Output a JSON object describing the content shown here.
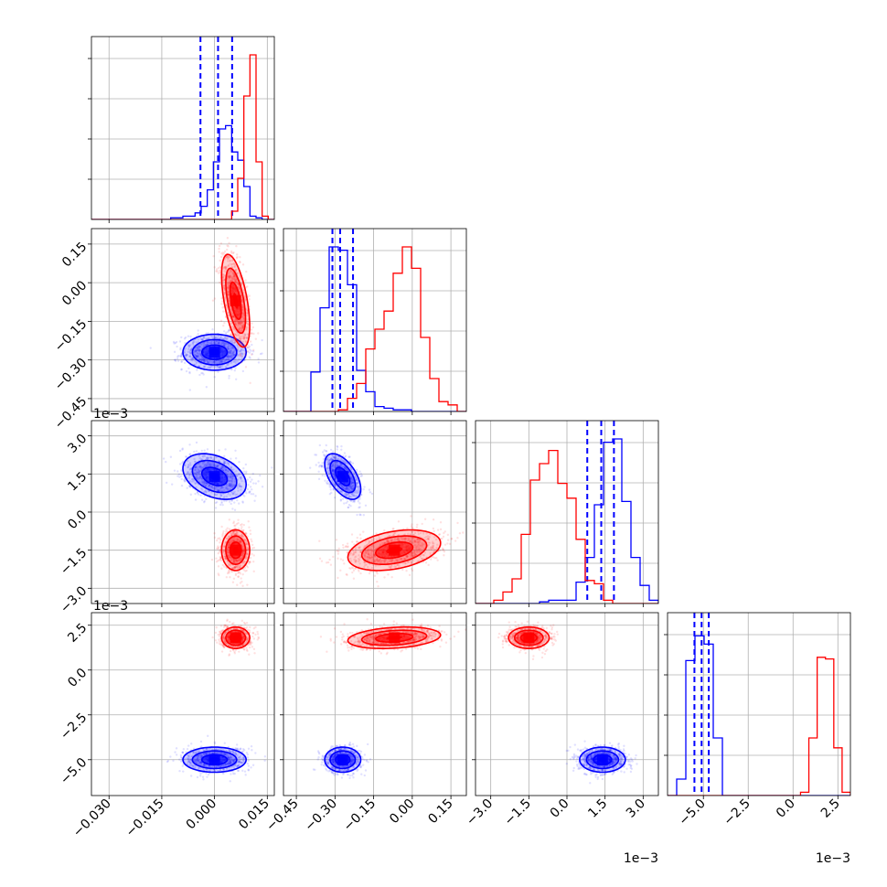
{
  "chart_data": {
    "type": "corner",
    "grid": true,
    "params": [
      {
        "range": [
          -0.035,
          0.017
        ],
        "ticks": [
          -0.03,
          -0.015,
          0.0,
          0.015
        ],
        "tick_labels": [
          "−0.030",
          "−0.015",
          "0.000",
          "0.015"
        ],
        "exponent_label": ""
      },
      {
        "range": [
          -0.5,
          0.21
        ],
        "ticks": [
          -0.45,
          -0.3,
          -0.15,
          0.0,
          0.15
        ],
        "tick_labels": [
          "−0.45",
          "−0.30",
          "−0.15",
          "0.00",
          "0.15"
        ],
        "exponent_label": ""
      },
      {
        "range": [
          -3.6,
          3.6
        ],
        "ticks": [
          -3.0,
          -1.5,
          0.0,
          1.5,
          3.0
        ],
        "tick_labels": [
          "−3.0",
          "−1.5",
          "0.0",
          "1.5",
          "3.0"
        ],
        "exponent_label": "1e−3"
      },
      {
        "range": [
          -7.0,
          3.2
        ],
        "ticks": [
          -5.0,
          -2.5,
          0.0,
          2.5
        ],
        "tick_labels": [
          "−5.0",
          "−2.5",
          "0.0",
          "2.5"
        ],
        "exponent_label": "1e−3"
      }
    ],
    "series": [
      {
        "color": "#0000ff",
        "means": [
          0.0,
          -0.27,
          1.4,
          -5.0
        ],
        "sigmas": [
          0.0045,
          0.035,
          0.45,
          0.35
        ],
        "histograms": [
          [
            0.0,
            0.0,
            0.0,
            0.0,
            0.0,
            0.0,
            0.0,
            0.0,
            0.0,
            0.0,
            0.0,
            0.0,
            0.0,
            0.01,
            0.01,
            0.02,
            0.02,
            0.04,
            0.08,
            0.18,
            0.35,
            0.55,
            0.57,
            0.41,
            0.36,
            0.2,
            0.02,
            0.01,
            0.0,
            0.0
          ],
          [
            0.0,
            0.0,
            0.0,
            0.24,
            0.63,
            1.0,
            0.98,
            0.77,
            0.25,
            0.12,
            0.03,
            0.02,
            0.01,
            0.01,
            0.0,
            0.0,
            0.0,
            0.0,
            0.0,
            0.0
          ],
          [
            0.0,
            0.0,
            0.0,
            0.0,
            0.0,
            0.0,
            0.0,
            0.01,
            0.02,
            0.02,
            0.02,
            0.13,
            0.28,
            0.6,
            0.98,
            1.0,
            0.62,
            0.28,
            0.11,
            0.02
          ],
          [
            0.0,
            0.1,
            0.82,
            0.97,
            0.92,
            0.35,
            0.0,
            0.0,
            0.0,
            0.0,
            0.0,
            0.0,
            0.0,
            0.0,
            0.0,
            0.0,
            0.0,
            0.0,
            0.0,
            0.0
          ]
        ],
        "quantile_lines": [
          [
            -0.004,
            0.001,
            0.005
          ],
          [
            -0.31,
            -0.28,
            -0.23
          ],
          [
            0.8,
            1.35,
            1.85
          ],
          [
            -5.5,
            -5.1,
            -4.7
          ]
        ],
        "contours": {
          "1-0": [
            [
              -0.004,
              0.0,
              -0.3
            ],
            [
              0.005,
              0.01,
              -0.31
            ]
          ],
          "2-0": [
            [
              -0.005,
              0.0,
              1.45
            ],
            [
              0.006,
              -0.005,
              1.4
            ]
          ],
          "2-1": [
            [
              -0.045,
              -0.28,
              1.5
            ],
            [
              0.7,
              0.0,
              1.45
            ]
          ],
          "3-0": [
            [
              -0.006,
              0.0,
              -5.0
            ],
            [
              0.005,
              0.0,
              -5.1
            ]
          ],
          "3-1": [
            [
              -0.05,
              -0.28,
              -5.0
            ],
            [
              0.6,
              0.0,
              -5.1
            ]
          ],
          "3-2": [
            [
              -0.55,
              1.4,
              -5.0
            ],
            [
              0.5,
              0.0,
              -5.1
            ]
          ]
        }
      },
      {
        "color": "#ff0000",
        "means": [
          0.006,
          -0.07,
          -1.5,
          1.8
        ],
        "sigmas": [
          0.002,
          0.09,
          0.4,
          0.3
        ],
        "histograms": [
          [
            0.0,
            0.0,
            0.0,
            0.0,
            0.0,
            0.0,
            0.0,
            0.0,
            0.0,
            0.0,
            0.0,
            0.0,
            0.0,
            0.0,
            0.0,
            0.0,
            0.0,
            0.0,
            0.0,
            0.0,
            0.0,
            0.0,
            0.0,
            0.05,
            0.25,
            0.75,
            1.0,
            0.35,
            0.02,
            0.0
          ],
          [
            0.0,
            0.0,
            0.0,
            0.0,
            0.0,
            0.0,
            0.01,
            0.08,
            0.17,
            0.38,
            0.5,
            0.61,
            0.84,
            1.0,
            0.87,
            0.45,
            0.2,
            0.06,
            0.04,
            0.0
          ],
          [
            0.0,
            0.0,
            0.02,
            0.07,
            0.15,
            0.42,
            0.75,
            0.85,
            0.93,
            0.73,
            0.64,
            0.39,
            0.14,
            0.12,
            0.02,
            0.0,
            0.0,
            0.0,
            0.0,
            0.0
          ],
          [
            0.0,
            0.0,
            0.0,
            0.0,
            0.0,
            0.0,
            0.0,
            0.0,
            0.0,
            0.0,
            0.0,
            0.0,
            0.0,
            0.0,
            0.0,
            0.0,
            0.02,
            0.35,
            0.84,
            0.83,
            0.29,
            0.02
          ]
        ],
        "quantile_lines": [
          [],
          [],
          [],
          []
        ],
        "contours": {
          "1-0": [
            [
              0.006,
              -0.08,
              -0.13
            ],
            [
              0.002,
              0.04,
              -0.09
            ]
          ],
          "2-0": [
            [
              0.006,
              0.0,
              -1.4
            ],
            [
              0.0018,
              0.0,
              -1.5
            ]
          ],
          "2-1": [
            [
              -0.1,
              -0.01,
              -1.4
            ],
            [
              0.4,
              0.0,
              -1.5
            ]
          ],
          "3-0": [
            [
              0.006,
              0.0,
              1.75
            ],
            [
              0.0018,
              0.0,
              1.85
            ]
          ],
          "3-1": [
            [
              -0.09,
              -0.01,
              1.8
            ],
            [
              0.55,
              0.0,
              1.85
            ]
          ],
          "3-2": [
            [
              -1.55,
              -1.45,
              1.8
            ],
            [
              0.5,
              0.0,
              1.8
            ]
          ]
        }
      }
    ]
  }
}
